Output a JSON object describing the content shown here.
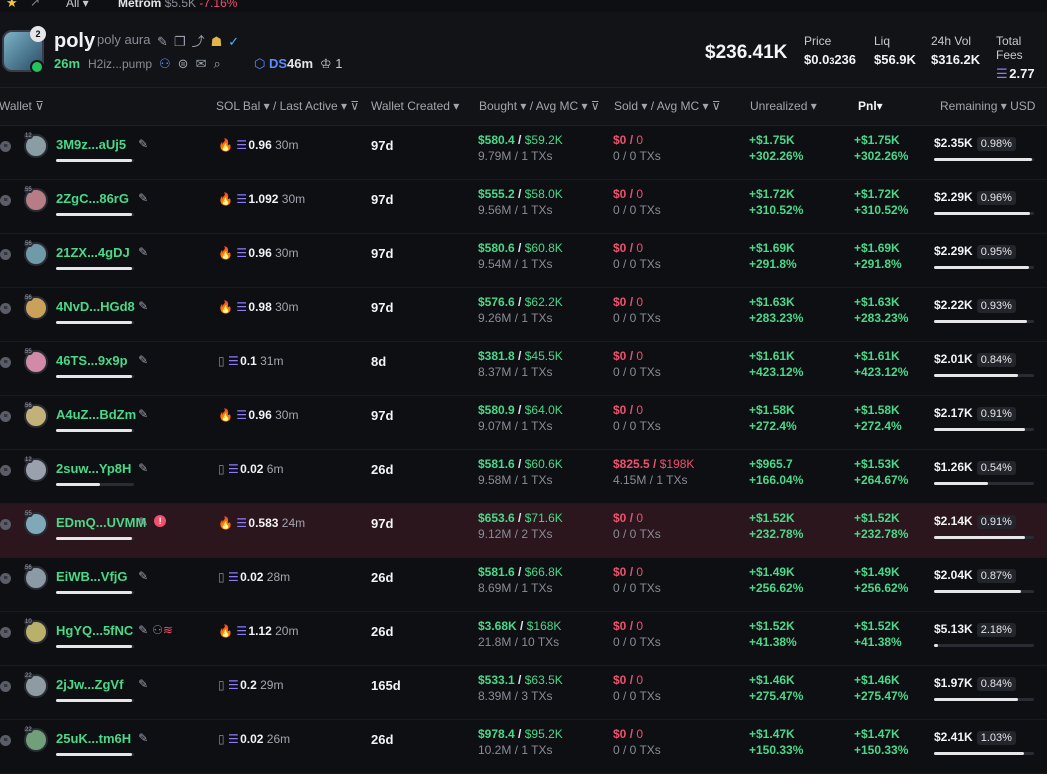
{
  "topbar": {
    "all_label": "All",
    "ticker": "Metrom",
    "mc": "$5.5K",
    "change": "-7.16%"
  },
  "token": {
    "badge": "2",
    "symbol": "poly",
    "name": "poly aura",
    "age": "26m",
    "address": "H2iz...pump",
    "ds_label": "DS",
    "ds_age": "46m",
    "holders_count": "1",
    "market_cap": "$236.41K"
  },
  "stats": [
    {
      "label": "Price",
      "value_pre": "$0.0",
      "value_sub": "3",
      "value_post": "236"
    },
    {
      "label": "Liq",
      "value": "$56.9K"
    },
    {
      "label": "24h Vol",
      "value": "$316.2K"
    },
    {
      "label": "Total Fees",
      "value": "2.77"
    }
  ],
  "columns": {
    "wallet": "Wallet",
    "sol_bal": "SOL Bal",
    "last_active": "/ Last Active",
    "created": "Wallet Created",
    "bought": "Bought",
    "bought_avg": "/ Avg MC",
    "sold": "Sold",
    "sold_avg": "/ Avg MC",
    "unrealized": "Unrealized",
    "pnl": "Pnl",
    "remaining": "Remaining",
    "currency": "USD"
  },
  "rows": [
    {
      "wallet": "3M9z...aUj5",
      "tag": "12",
      "av_color": "#8a9da3",
      "bar": 0.98,
      "prefix": "fire",
      "bal": "0.96",
      "act": "30m",
      "created": "97d",
      "bought": "$580.4",
      "bought_mc": "$59.2K",
      "bought_sub": "9.79M / 1 TXs",
      "sold": "$0",
      "sold_mc": "0",
      "sold_sub": "0 / 0 TXs",
      "unreal": "+$1.75K",
      "unreal_pct": "+302.26%",
      "pnl": "+$1.75K",
      "pnl_pct": "+302.26%",
      "rem": "$2.35K",
      "rem_pct": "0.98%",
      "rem_fill": 0.98
    },
    {
      "wallet": "2ZgC...86rG",
      "tag": "55",
      "av_color": "#b77d86",
      "bar": 0.98,
      "prefix": "fire",
      "bal": "1.092",
      "act": "30m",
      "created": "97d",
      "bought": "$555.2",
      "bought_mc": "$58.0K",
      "bought_sub": "9.56M / 1 TXs",
      "sold": "$0",
      "sold_mc": "0",
      "sold_sub": "0 / 0 TXs",
      "unreal": "+$1.72K",
      "unreal_pct": "+310.52%",
      "pnl": "+$1.72K",
      "pnl_pct": "+310.52%",
      "rem": "$2.29K",
      "rem_pct": "0.96%",
      "rem_fill": 0.96
    },
    {
      "wallet": "21ZX...4gDJ",
      "tag": "56",
      "av_color": "#6f9aa8",
      "bar": 0.98,
      "prefix": "fire",
      "bal": "0.96",
      "act": "30m",
      "created": "97d",
      "bought": "$580.6",
      "bought_mc": "$60.8K",
      "bought_sub": "9.54M / 1 TXs",
      "sold": "$0",
      "sold_mc": "0",
      "sold_sub": "0 / 0 TXs",
      "unreal": "+$1.69K",
      "unreal_pct": "+291.8%",
      "pnl": "+$1.69K",
      "pnl_pct": "+291.8%",
      "rem": "$2.29K",
      "rem_pct": "0.95%",
      "rem_fill": 0.95
    },
    {
      "wallet": "4NvD...HGd8",
      "tag": "56",
      "av_color": "#c9a15a",
      "bar": 0.98,
      "prefix": "fire",
      "bal": "0.98",
      "act": "30m",
      "created": "97d",
      "bought": "$576.6",
      "bought_mc": "$62.2K",
      "bought_sub": "9.26M / 1 TXs",
      "sold": "$0",
      "sold_mc": "0",
      "sold_sub": "0 / 0 TXs",
      "unreal": "+$1.63K",
      "unreal_pct": "+283.23%",
      "pnl": "+$1.63K",
      "pnl_pct": "+283.23%",
      "rem": "$2.22K",
      "rem_pct": "0.93%",
      "rem_fill": 0.93
    },
    {
      "wallet": "46TS...9x9p",
      "tag": "55",
      "av_color": "#d28aa8",
      "bar": 0.98,
      "prefix": "box",
      "bal": "0.1",
      "act": "31m",
      "created": "8d",
      "bought": "$381.8",
      "bought_mc": "$45.5K",
      "bought_sub": "8.37M / 1 TXs",
      "sold": "$0",
      "sold_mc": "0",
      "sold_sub": "0 / 0 TXs",
      "unreal": "+$1.61K",
      "unreal_pct": "+423.12%",
      "pnl": "+$1.61K",
      "pnl_pct": "+423.12%",
      "rem": "$2.01K",
      "rem_pct": "0.84%",
      "rem_fill": 0.84
    },
    {
      "wallet": "A4uZ...BdZm",
      "tag": "56",
      "av_color": "#c2b27a",
      "bar": 0.98,
      "prefix": "fire",
      "bal": "0.96",
      "act": "30m",
      "created": "97d",
      "bought": "$580.9",
      "bought_mc": "$64.0K",
      "bought_sub": "9.07M / 1 TXs",
      "sold": "$0",
      "sold_mc": "0",
      "sold_sub": "0 / 0 TXs",
      "unreal": "+$1.58K",
      "unreal_pct": "+272.4%",
      "pnl": "+$1.58K",
      "pnl_pct": "+272.4%",
      "rem": "$2.17K",
      "rem_pct": "0.91%",
      "rem_fill": 0.91
    },
    {
      "wallet": "2suw...Yp8H",
      "tag": "12",
      "av_color": "#9aa0ad",
      "bar": 0.56,
      "prefix": "box",
      "bal": "0.02",
      "act": "6m",
      "created": "26d",
      "bought": "$581.6",
      "bought_mc": "$60.6K",
      "bought_sub": "9.58M / 1 TXs",
      "sold": "$825.5",
      "sold_mc": "$198K",
      "sold_sub": "4.15M / 1 TXs",
      "sold_active": true,
      "unreal": "+$965.7",
      "unreal_pct": "+166.04%",
      "pnl": "+$1.53K",
      "pnl_pct": "+264.67%",
      "rem": "$1.26K",
      "rem_pct": "0.54%",
      "rem_fill": 0.54
    },
    {
      "wallet": "EDmQ...UVMM",
      "tag": "55",
      "av_color": "#7fa9b8",
      "bar": 0.98,
      "prefix": "fire",
      "bal": "0.583",
      "act": "24m",
      "created": "97d",
      "alert": "!",
      "highlight": true,
      "bought": "$653.6",
      "bought_mc": "$71.6K",
      "bought_sub": "9.12M / 2 TXs",
      "sold": "$0",
      "sold_mc": "0",
      "sold_sub": "0 / 0 TXs",
      "unreal": "+$1.52K",
      "unreal_pct": "+232.78%",
      "pnl": "+$1.52K",
      "pnl_pct": "+232.78%",
      "rem": "$2.14K",
      "rem_pct": "0.91%",
      "rem_fill": 0.91
    },
    {
      "wallet": "EiWB...VfjG",
      "tag": "56",
      "av_color": "#8c9aa6",
      "bar": 0.98,
      "prefix": "box",
      "bal": "0.02",
      "act": "28m",
      "created": "26d",
      "bought": "$581.6",
      "bought_mc": "$66.8K",
      "bought_sub": "8.69M / 1 TXs",
      "sold": "$0",
      "sold_mc": "0",
      "sold_sub": "0 / 0 TXs",
      "unreal": "+$1.49K",
      "unreal_pct": "+256.62%",
      "pnl": "+$1.49K",
      "pnl_pct": "+256.62%",
      "rem": "$2.04K",
      "rem_pct": "0.87%",
      "rem_fill": 0.87
    },
    {
      "wallet": "HgYQ...5fNC",
      "tag": "10",
      "av_color": "#b9b06a",
      "bar": 0.98,
      "prefix": "fire",
      "bal": "1.12",
      "act": "20m",
      "created": "26d",
      "extra": true,
      "bought": "$3.68K",
      "bought_mc": "$168K",
      "bought_sub": "21.8M / 10 TXs",
      "sold": "$0",
      "sold_mc": "0",
      "sold_sub": "0 / 0 TXs",
      "unreal": "+$1.52K",
      "unreal_pct": "+41.38%",
      "pnl": "+$1.52K",
      "pnl_pct": "+41.38%",
      "rem": "$5.13K",
      "rem_pct": "2.18%",
      "rem_fill": 0.04
    },
    {
      "wallet": "2jJw...ZgVf",
      "tag": "22",
      "av_color": "#8f9ba3",
      "bar": 0.98,
      "prefix": "box",
      "bal": "0.2",
      "act": "29m",
      "created": "165d",
      "bought": "$533.1",
      "bought_mc": "$63.5K",
      "bought_sub": "8.39M / 3 TXs",
      "sold": "$0",
      "sold_mc": "0",
      "sold_sub": "0 / 0 TXs",
      "unreal": "+$1.46K",
      "unreal_pct": "+275.47%",
      "pnl": "+$1.46K",
      "pnl_pct": "+275.47%",
      "rem": "$1.97K",
      "rem_pct": "0.84%",
      "rem_fill": 0.84
    },
    {
      "wallet": "25uK...tm6H",
      "tag": "22",
      "av_color": "#6fa07a",
      "bar": 0.98,
      "prefix": "box",
      "bal": "0.02",
      "act": "26m",
      "created": "26d",
      "bought": "$978.4",
      "bought_mc": "$95.2K",
      "bought_sub": "10.2M / 1 TXs",
      "sold": "$0",
      "sold_mc": "0",
      "sold_sub": "0 / 0 TXs",
      "unreal": "+$1.47K",
      "unreal_pct": "+150.33%",
      "pnl": "+$1.47K",
      "pnl_pct": "+150.33%",
      "rem": "$2.41K",
      "rem_pct": "1.03%",
      "rem_fill": 0.9
    }
  ]
}
